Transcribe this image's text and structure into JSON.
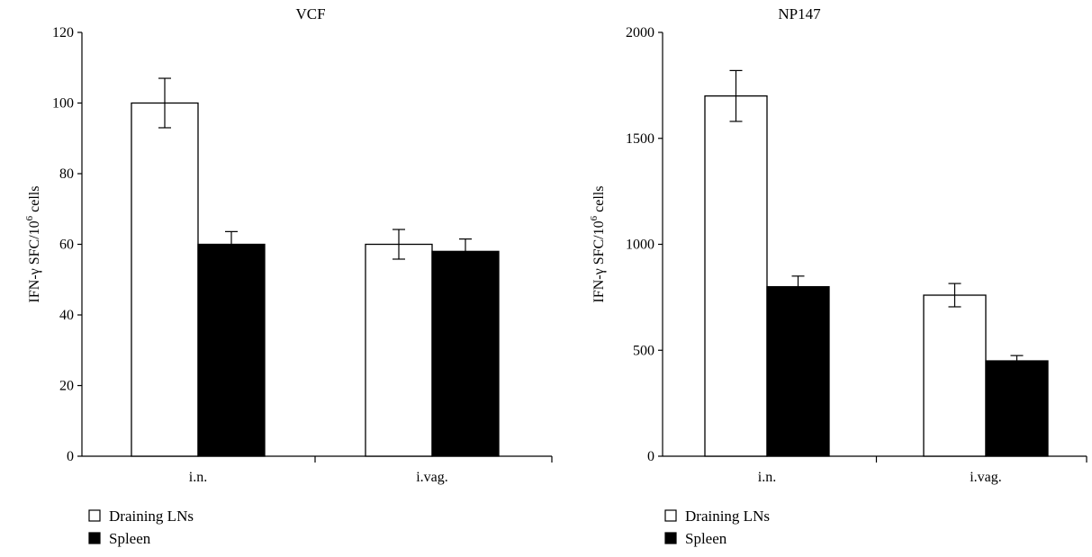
{
  "chart_data": [
    {
      "type": "bar",
      "title": "VCF",
      "ylabel": "IFN-γ SFC/10",
      "ylabel_sup": "6",
      "ylabel_suffix": " cells",
      "xlabel": "",
      "categories": [
        "i.n.",
        "i.vag."
      ],
      "ylim": [
        0,
        120
      ],
      "yticks": [
        0,
        20,
        40,
        60,
        80,
        100,
        120
      ],
      "series": [
        {
          "name": "Draining LNs",
          "color": "#ffffff",
          "values": [
            100,
            60
          ],
          "errors": [
            7,
            4.2
          ]
        },
        {
          "name": "Spleen",
          "color": "#000000",
          "values": [
            60,
            58
          ],
          "errors": [
            3.6,
            3.5
          ]
        }
      ],
      "legend": "bottom-left",
      "grid": false
    },
    {
      "type": "bar",
      "title": "NP147",
      "ylabel": "IFN-γ SFC/10",
      "ylabel_sup": "6",
      "ylabel_suffix": " cells",
      "xlabel": "",
      "categories": [
        "i.n.",
        "i.vag."
      ],
      "ylim": [
        0,
        2000
      ],
      "yticks": [
        0,
        500,
        1000,
        1500,
        2000
      ],
      "series": [
        {
          "name": "Draining LNs",
          "color": "#ffffff",
          "values": [
            1700,
            760
          ],
          "errors": [
            120,
            55
          ]
        },
        {
          "name": "Spleen",
          "color": "#000000",
          "values": [
            800,
            450
          ],
          "errors": [
            50,
            25
          ]
        }
      ],
      "legend": "bottom-left",
      "grid": false
    }
  ]
}
